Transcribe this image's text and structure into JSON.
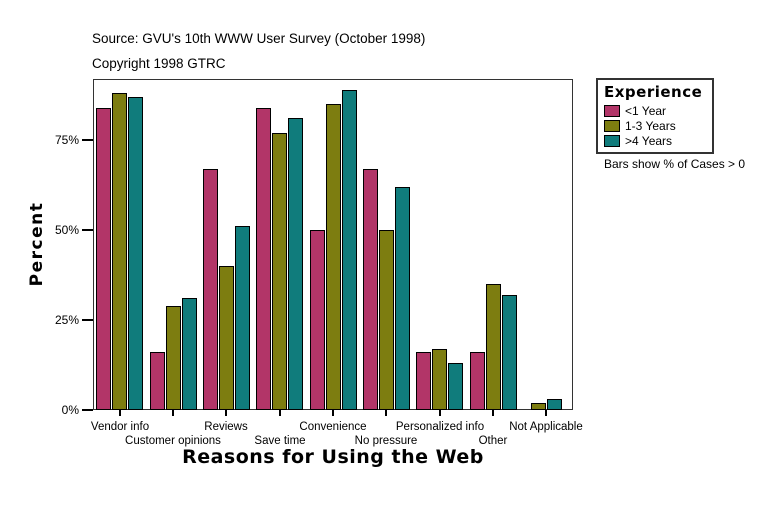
{
  "header": {
    "source": "Source: GVU's 10th WWW User Survey (October 1998)",
    "copyright": "Copyright 1998 GTRC"
  },
  "chart_data": {
    "type": "bar",
    "title": "",
    "xlabel": "Reasons for Using the Web",
    "ylabel": "Percent",
    "ylim": [
      0,
      92
    ],
    "ytick_values": [
      0,
      25,
      50,
      75
    ],
    "ytick_labels": [
      "0%",
      "25%",
      "50%",
      "75%"
    ],
    "grid": false,
    "legend_position": "right",
    "categories": [
      "Vendor info",
      "Customer opinions",
      "Reviews",
      "Save time",
      "Convenience",
      "No pressure",
      "Personalized info",
      "Other",
      "Not Applicable"
    ],
    "series": [
      {
        "name": "<1 Year",
        "color": "#B23568",
        "values": [
          84,
          16,
          67,
          84,
          50,
          67,
          16,
          16,
          0
        ]
      },
      {
        "name": "1-3 Years",
        "color": "#7D7D10",
        "values": [
          88,
          29,
          40,
          77,
          85,
          50,
          17,
          35,
          2
        ]
      },
      {
        "name": ">4 Years",
        "color": "#107C7C",
        "values": [
          87,
          31,
          51,
          81,
          89,
          62,
          13,
          32,
          3
        ]
      }
    ]
  },
  "legend": {
    "title": "Experience",
    "note": "Bars show % of Cases > 0"
  }
}
